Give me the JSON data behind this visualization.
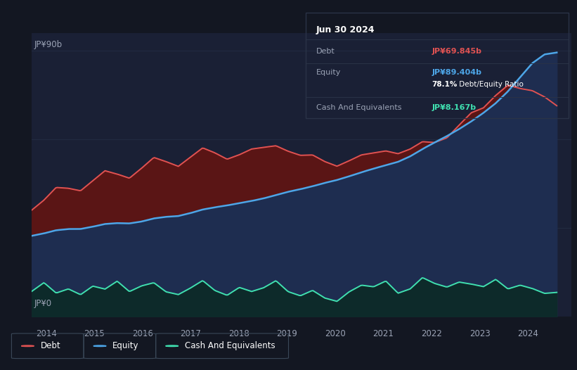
{
  "background_color": "#131722",
  "plot_bg_color": "#1a2035",
  "title": "Jun 30 2024",
  "y_label_top": "JP¥90b",
  "y_label_bottom": "JP¥0",
  "x_ticks": [
    "2014",
    "2015",
    "2016",
    "2017",
    "2018",
    "2019",
    "2020",
    "2021",
    "2022",
    "2023",
    "2024"
  ],
  "debt_color": "#e05252",
  "equity_color": "#4da6e8",
  "cash_color": "#40e0b0",
  "fill_debt_above_equity_color": "#5a1515",
  "fill_equity_color": "#1e2d50",
  "fill_cash_color": "#0d2a2a",
  "grid_color": "#252f45",
  "text_color": "#9ba3b5",
  "tooltip_bg": "#0e1218",
  "tooltip_border": "#2a3347",
  "debt_label": "Debt",
  "equity_label": "Equity",
  "cash_label": "Cash And Equivalents",
  "debt_value": "JP¥69.845b",
  "equity_value": "JP¥89.404b",
  "ratio_text": "78.1%",
  "ratio_suffix": " Debt/Equity Ratio",
  "cash_value": "JP¥8.167b",
  "debt_color_tooltip": "#e05252",
  "equity_color_tooltip": "#4da6e8",
  "cash_color_tooltip": "#40e0b0",
  "legend_items": [
    "Debt",
    "Equity",
    "Cash And Equivalents"
  ],
  "legend_colors": [
    "#e05252",
    "#4da6e8",
    "#40e0b0"
  ],
  "debt_data": [
    35.0,
    38.0,
    47.0,
    43.5,
    40.0,
    46.0,
    52.0,
    48.5,
    44.0,
    50.0,
    57.0,
    52.5,
    48.0,
    54.0,
    60.0,
    55.5,
    51.0,
    55.0,
    58.0,
    56.0,
    60.0,
    55.5,
    53.0,
    57.0,
    52.0,
    49.0,
    53.0,
    56.0,
    54.0,
    58.5,
    53.0,
    56.0,
    62.0,
    57.0,
    60.0,
    64.0,
    72.0,
    68.0,
    75.0,
    82.0,
    75.0,
    78.0,
    75.0,
    70.0
  ],
  "equity_data": [
    27.0,
    28.0,
    29.5,
    30.0,
    29.0,
    30.5,
    31.5,
    32.0,
    31.0,
    32.0,
    33.5,
    34.0,
    33.5,
    35.0,
    36.5,
    37.0,
    37.5,
    38.5,
    39.0,
    40.0,
    41.0,
    42.5,
    43.0,
    44.0,
    45.5,
    46.0,
    47.5,
    49.0,
    50.0,
    51.5,
    52.0,
    54.0,
    57.0,
    59.0,
    61.0,
    63.5,
    66.0,
    69.0,
    72.0,
    76.0,
    81.0,
    86.5,
    90.0,
    89.4
  ],
  "cash_data": [
    8.0,
    12.5,
    7.0,
    10.0,
    6.5,
    11.0,
    8.5,
    13.0,
    7.5,
    10.5,
    12.0,
    8.0,
    7.0,
    9.5,
    13.0,
    8.5,
    6.5,
    10.5,
    8.0,
    9.5,
    13.0,
    8.0,
    6.5,
    9.5,
    6.0,
    4.5,
    8.5,
    11.0,
    9.5,
    13.0,
    7.0,
    9.0,
    14.0,
    11.0,
    9.5,
    12.0,
    11.0,
    9.5,
    13.5,
    8.5,
    11.0,
    9.5,
    7.5,
    8.2
  ],
  "ylim": [
    0,
    96
  ],
  "xmin": 2013.7,
  "xmax": 2024.9
}
